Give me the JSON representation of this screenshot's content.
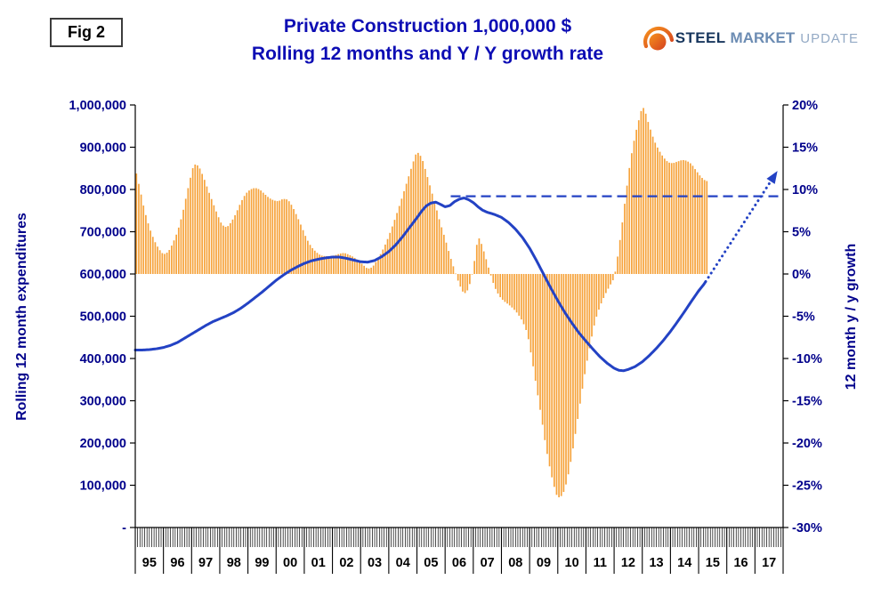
{
  "figure_label": "Fig 2",
  "title": {
    "line1": "Private Construction 1,000,000 $",
    "line2": "Rolling 12 months and Y / Y growth rate"
  },
  "logo": {
    "steel": "STEEL",
    "market": "MARKET",
    "update": "UPDATE"
  },
  "colors": {
    "title_blue": "#0d0db4",
    "axis_label_navy": "#00008b",
    "bar_orange": "#f6a33c",
    "line_blue": "#2342c4",
    "logo_orange": "#e8731a"
  },
  "chart_data": {
    "type": "bar+line",
    "title": "Private Construction 1,000,000 $ — Rolling 12 months and Y / Y growth rate",
    "grid": false,
    "legend": false,
    "x_axis": {
      "start_year": 1995,
      "end_year": 2018,
      "year_labels": [
        "95",
        "96",
        "97",
        "98",
        "99",
        "00",
        "01",
        "02",
        "03",
        "04",
        "05",
        "06",
        "07",
        "08",
        "09",
        "10",
        "11",
        "12",
        "13",
        "14",
        "15",
        "16",
        "17"
      ]
    },
    "left_axis": {
      "title": "Rolling 12 month expenditures",
      "min": 0,
      "max": 1000000,
      "step": 100000,
      "tick_labels": [
        "-",
        "100,000",
        "200,000",
        "300,000",
        "400,000",
        "500,000",
        "600,000",
        "700,000",
        "800,000",
        "900,000",
        "1,000,000"
      ]
    },
    "right_axis": {
      "title": "12 month y / y growth",
      "min": -30,
      "max": 20,
      "step": 5,
      "tick_labels": [
        "-30%",
        "-25%",
        "-20%",
        "-15%",
        "-10%",
        "-5%",
        "0%",
        "5%",
        "10%",
        "15%",
        "20%"
      ]
    },
    "series": {
      "growth_bars": {
        "name": "12 month y / y growth rate",
        "type": "bar",
        "axis": "right",
        "unit": "%",
        "color": "#f6a33c",
        "monthly": true,
        "points": [
          [
            1995.0,
            12.5
          ],
          [
            1995.17,
            10.0
          ],
          [
            1995.33,
            7.5
          ],
          [
            1995.5,
            5.5
          ],
          [
            1995.67,
            4.0
          ],
          [
            1995.83,
            3.0
          ],
          [
            1996.0,
            2.3
          ],
          [
            1996.17,
            2.6
          ],
          [
            1996.33,
            3.6
          ],
          [
            1996.5,
            5.0
          ],
          [
            1996.67,
            7.0
          ],
          [
            1996.83,
            9.5
          ],
          [
            1997.0,
            12.0
          ],
          [
            1997.08,
            13.0
          ],
          [
            1997.25,
            12.8
          ],
          [
            1997.42,
            11.5
          ],
          [
            1997.58,
            10.0
          ],
          [
            1997.75,
            8.5
          ],
          [
            1997.92,
            7.0
          ],
          [
            1998.08,
            5.8
          ],
          [
            1998.25,
            5.5
          ],
          [
            1998.42,
            6.2
          ],
          [
            1998.58,
            7.2
          ],
          [
            1998.75,
            8.5
          ],
          [
            1998.92,
            9.5
          ],
          [
            1999.08,
            10.0
          ],
          [
            1999.25,
            10.2
          ],
          [
            1999.42,
            10.0
          ],
          [
            1999.58,
            9.5
          ],
          [
            1999.75,
            9.0
          ],
          [
            1999.92,
            8.7
          ],
          [
            2000.08,
            8.6
          ],
          [
            2000.25,
            8.9
          ],
          [
            2000.42,
            8.8
          ],
          [
            2000.58,
            8.0
          ],
          [
            2000.75,
            6.8
          ],
          [
            2000.92,
            5.5
          ],
          [
            2001.08,
            4.2
          ],
          [
            2001.25,
            3.2
          ],
          [
            2001.42,
            2.6
          ],
          [
            2001.58,
            2.2
          ],
          [
            2001.75,
            2.1
          ],
          [
            2001.92,
            2.1
          ],
          [
            2002.08,
            2.2
          ],
          [
            2002.25,
            2.4
          ],
          [
            2002.42,
            2.5
          ],
          [
            2002.58,
            2.3
          ],
          [
            2002.75,
            2.0
          ],
          [
            2002.92,
            1.6
          ],
          [
            2003.08,
            1.1
          ],
          [
            2003.25,
            0.6
          ],
          [
            2003.42,
            0.8
          ],
          [
            2003.58,
            1.6
          ],
          [
            2003.75,
            2.6
          ],
          [
            2003.92,
            3.8
          ],
          [
            2004.08,
            5.2
          ],
          [
            2004.25,
            6.8
          ],
          [
            2004.42,
            8.5
          ],
          [
            2004.58,
            10.2
          ],
          [
            2004.75,
            12.0
          ],
          [
            2004.92,
            13.8
          ],
          [
            2005.0,
            14.5
          ],
          [
            2005.17,
            13.8
          ],
          [
            2005.33,
            12.0
          ],
          [
            2005.5,
            10.0
          ],
          [
            2005.67,
            8.0
          ],
          [
            2005.83,
            6.0
          ],
          [
            2006.0,
            4.2
          ],
          [
            2006.17,
            2.2
          ],
          [
            2006.33,
            0.5
          ],
          [
            2006.5,
            -1.2
          ],
          [
            2006.67,
            -2.4
          ],
          [
            2006.83,
            -1.8
          ],
          [
            2007.0,
            0.5
          ],
          [
            2007.08,
            2.5
          ],
          [
            2007.17,
            4.4
          ],
          [
            2007.25,
            4.0
          ],
          [
            2007.42,
            2.2
          ],
          [
            2007.58,
            0.3
          ],
          [
            2007.75,
            -1.5
          ],
          [
            2007.92,
            -2.6
          ],
          [
            2008.08,
            -3.2
          ],
          [
            2008.25,
            -3.6
          ],
          [
            2008.42,
            -4.1
          ],
          [
            2008.58,
            -4.7
          ],
          [
            2008.75,
            -5.6
          ],
          [
            2008.92,
            -7.0
          ],
          [
            2009.08,
            -10.0
          ],
          [
            2009.25,
            -13.5
          ],
          [
            2009.42,
            -17.0
          ],
          [
            2009.58,
            -20.5
          ],
          [
            2009.75,
            -23.5
          ],
          [
            2009.92,
            -25.8
          ],
          [
            2010.0,
            -26.5
          ],
          [
            2010.17,
            -26.2
          ],
          [
            2010.33,
            -24.5
          ],
          [
            2010.5,
            -21.5
          ],
          [
            2010.67,
            -18.0
          ],
          [
            2010.83,
            -14.5
          ],
          [
            2011.0,
            -11.0
          ],
          [
            2011.17,
            -8.0
          ],
          [
            2011.33,
            -5.5
          ],
          [
            2011.5,
            -3.8
          ],
          [
            2011.67,
            -2.5
          ],
          [
            2011.83,
            -1.5
          ],
          [
            2012.0,
            -0.5
          ],
          [
            2012.08,
            1.0
          ],
          [
            2012.25,
            5.0
          ],
          [
            2012.42,
            9.5
          ],
          [
            2012.58,
            13.5
          ],
          [
            2012.75,
            16.5
          ],
          [
            2012.92,
            18.8
          ],
          [
            2013.0,
            19.8
          ],
          [
            2013.08,
            19.5
          ],
          [
            2013.25,
            17.5
          ],
          [
            2013.42,
            15.8
          ],
          [
            2013.58,
            14.7
          ],
          [
            2013.75,
            13.8
          ],
          [
            2013.92,
            13.2
          ],
          [
            2014.08,
            13.1
          ],
          [
            2014.25,
            13.3
          ],
          [
            2014.42,
            13.5
          ],
          [
            2014.58,
            13.4
          ],
          [
            2014.75,
            13.0
          ],
          [
            2014.92,
            12.2
          ],
          [
            2015.08,
            11.5
          ],
          [
            2015.25,
            11.0
          ]
        ]
      },
      "expenditures_line": {
        "name": "Rolling 12 month expenditures",
        "type": "line",
        "axis": "left",
        "unit": "$1,000",
        "color": "#2342c4",
        "points": [
          [
            1995.0,
            420000
          ],
          [
            1995.25,
            420000
          ],
          [
            1995.5,
            421000
          ],
          [
            1995.75,
            423000
          ],
          [
            1996.0,
            426000
          ],
          [
            1996.25,
            431000
          ],
          [
            1996.5,
            438000
          ],
          [
            1996.75,
            448000
          ],
          [
            1997.0,
            458000
          ],
          [
            1997.25,
            468000
          ],
          [
            1997.5,
            478000
          ],
          [
            1997.75,
            487000
          ],
          [
            1998.0,
            494000
          ],
          [
            1998.25,
            501000
          ],
          [
            1998.5,
            509000
          ],
          [
            1998.75,
            519000
          ],
          [
            1999.0,
            531000
          ],
          [
            1999.25,
            544000
          ],
          [
            1999.5,
            557000
          ],
          [
            1999.75,
            571000
          ],
          [
            2000.0,
            585000
          ],
          [
            2000.25,
            597000
          ],
          [
            2000.5,
            608000
          ],
          [
            2000.75,
            617000
          ],
          [
            2001.0,
            625000
          ],
          [
            2001.25,
            631000
          ],
          [
            2001.5,
            635000
          ],
          [
            2001.75,
            638000
          ],
          [
            2002.0,
            640000
          ],
          [
            2002.25,
            640000
          ],
          [
            2002.5,
            637000
          ],
          [
            2002.75,
            633000
          ],
          [
            2003.0,
            629000
          ],
          [
            2003.25,
            628000
          ],
          [
            2003.5,
            632000
          ],
          [
            2003.75,
            641000
          ],
          [
            2004.0,
            653000
          ],
          [
            2004.25,
            669000
          ],
          [
            2004.5,
            689000
          ],
          [
            2004.75,
            711000
          ],
          [
            2005.0,
            733000
          ],
          [
            2005.17,
            749000
          ],
          [
            2005.33,
            761000
          ],
          [
            2005.5,
            768000
          ],
          [
            2005.67,
            770000
          ],
          [
            2005.83,
            765000
          ],
          [
            2006.0,
            759000
          ],
          [
            2006.17,
            762000
          ],
          [
            2006.33,
            771000
          ],
          [
            2006.5,
            777000
          ],
          [
            2006.67,
            780000
          ],
          [
            2006.83,
            776000
          ],
          [
            2007.0,
            769000
          ],
          [
            2007.17,
            759000
          ],
          [
            2007.33,
            751000
          ],
          [
            2007.5,
            746000
          ],
          [
            2007.75,
            741000
          ],
          [
            2008.0,
            734000
          ],
          [
            2008.25,
            722000
          ],
          [
            2008.5,
            706000
          ],
          [
            2008.75,
            686000
          ],
          [
            2009.0,
            661000
          ],
          [
            2009.25,
            631000
          ],
          [
            2009.5,
            599000
          ],
          [
            2009.75,
            567000
          ],
          [
            2010.0,
            537000
          ],
          [
            2010.25,
            509000
          ],
          [
            2010.5,
            484000
          ],
          [
            2010.75,
            461000
          ],
          [
            2011.0,
            441000
          ],
          [
            2011.25,
            422000
          ],
          [
            2011.5,
            404000
          ],
          [
            2011.75,
            389000
          ],
          [
            2012.0,
            377000
          ],
          [
            2012.17,
            372000
          ],
          [
            2012.33,
            371000
          ],
          [
            2012.5,
            374000
          ],
          [
            2012.75,
            381000
          ],
          [
            2013.0,
            392000
          ],
          [
            2013.25,
            407000
          ],
          [
            2013.5,
            424000
          ],
          [
            2013.75,
            443000
          ],
          [
            2014.0,
            464000
          ],
          [
            2014.25,
            487000
          ],
          [
            2014.5,
            511000
          ],
          [
            2014.75,
            536000
          ],
          [
            2015.0,
            560000
          ],
          [
            2015.17,
            574000
          ],
          [
            2015.25,
            582000
          ]
        ]
      }
    },
    "annotations": {
      "dashed_reference": {
        "type": "horizontal-dashed-line",
        "axis": "right",
        "value": 9.2,
        "x_start": 2006.2,
        "x_end": 2017.95,
        "color": "#2342c4"
      },
      "projection_arrow": {
        "type": "dotted-arrow",
        "axis": "right",
        "from": [
          2015.25,
          -0.9
        ],
        "to": [
          2017.8,
          12.2
        ],
        "color": "#2342c4"
      }
    }
  }
}
